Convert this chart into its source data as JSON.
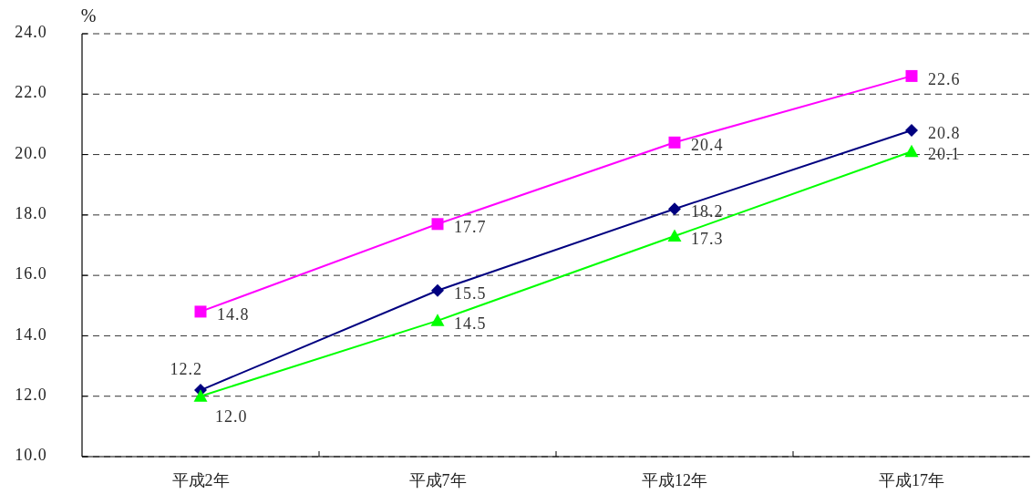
{
  "chart_data": {
    "type": "line",
    "ylabel": "%",
    "categories": [
      "平成2年",
      "平成7年",
      "平成12年",
      "平成17年"
    ],
    "series": [
      {
        "color": "#000080",
        "marker": "diamond",
        "values": [
          12.2,
          15.5,
          18.2,
          20.8
        ],
        "value_labels": [
          "12.2",
          "15.5",
          "18.2",
          "20.8"
        ]
      },
      {
        "color": "#ff00ff",
        "marker": "square",
        "values": [
          14.8,
          17.7,
          20.4,
          22.6
        ],
        "value_labels": [
          "14.8",
          "17.7",
          "20.4",
          "22.6"
        ]
      },
      {
        "color": "#00ff00",
        "marker": "triangle",
        "values": [
          12.0,
          14.5,
          17.3,
          20.1
        ],
        "value_labels": [
          "12.0",
          "14.5",
          "17.3",
          "20.1"
        ]
      }
    ],
    "ylim": [
      10,
      24
    ],
    "yticks": [
      {
        "value": 10,
        "label": "10.0"
      },
      {
        "value": 12,
        "label": "12.0"
      },
      {
        "value": 14,
        "label": "14.0"
      },
      {
        "value": 16,
        "label": "16.0"
      },
      {
        "value": 18,
        "label": "18.0"
      },
      {
        "value": 20,
        "label": "20.0"
      },
      {
        "value": 22,
        "label": "22.0"
      },
      {
        "value": 24,
        "label": "24.0"
      }
    ],
    "grid": "y",
    "line_style": "solid"
  }
}
